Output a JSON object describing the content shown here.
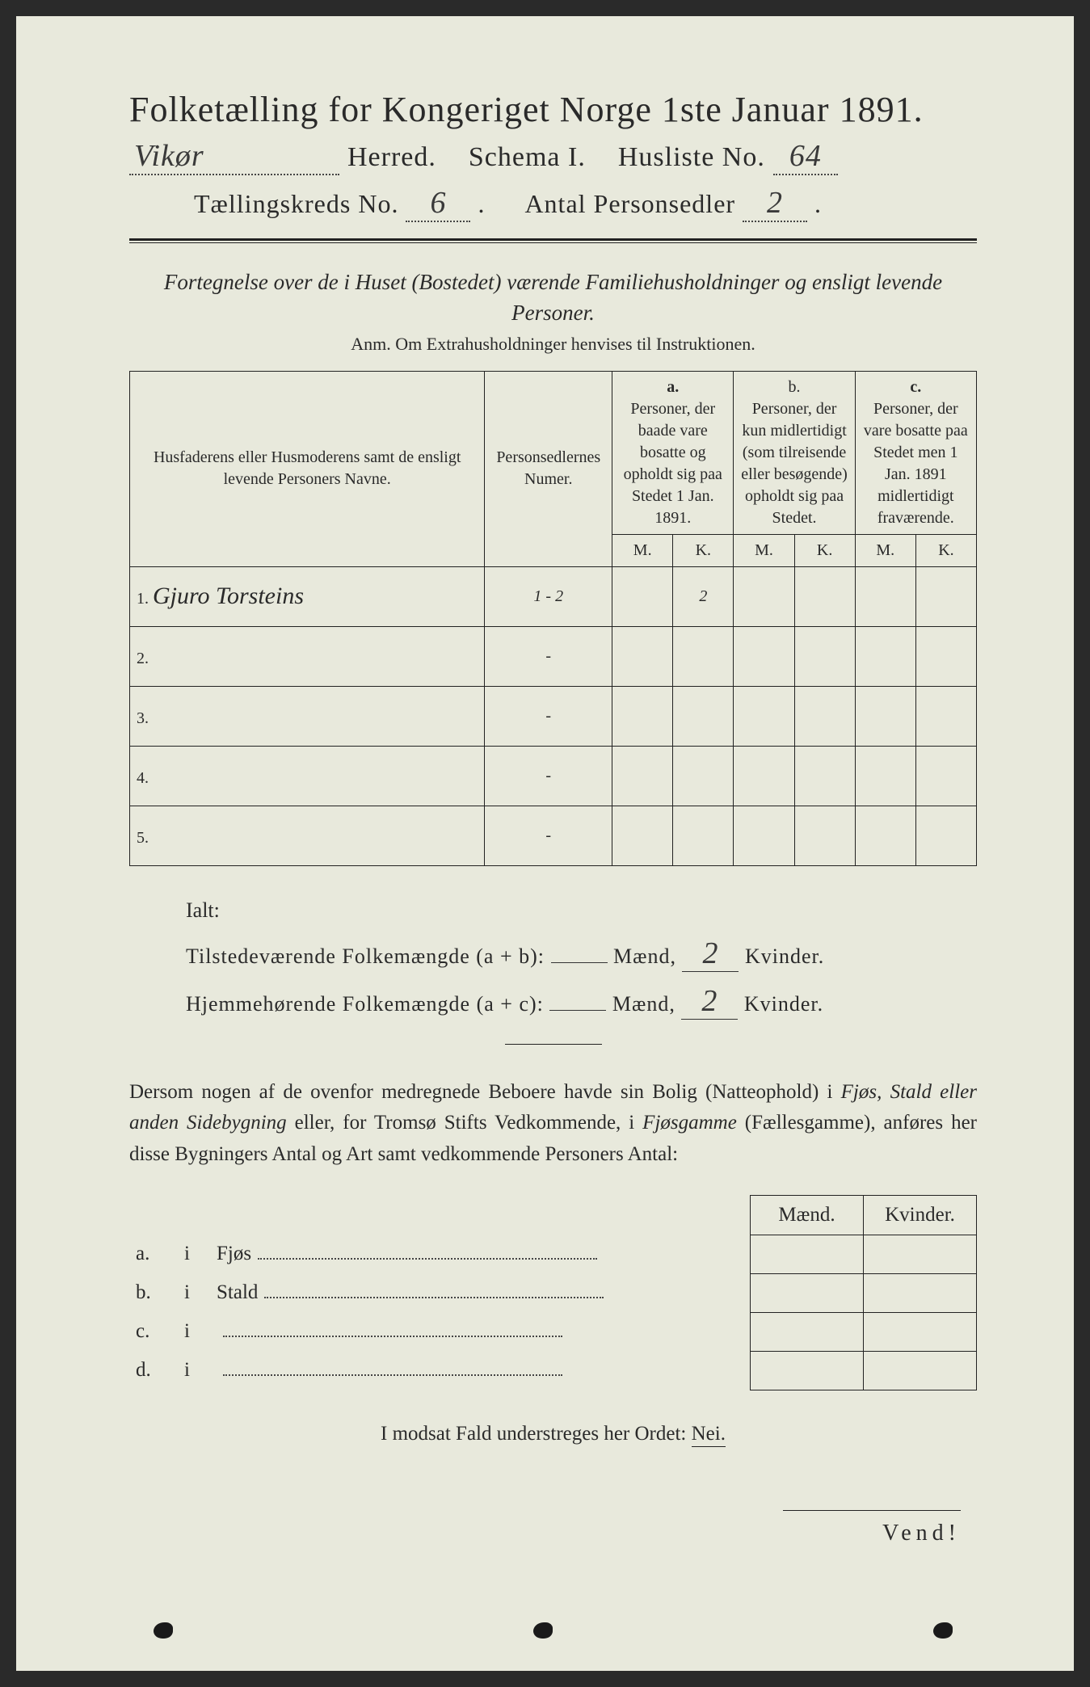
{
  "colors": {
    "paper": "#e8e9dc",
    "ink": "#2a2a2a",
    "border": "#222222",
    "background": "#2a2a2a"
  },
  "header": {
    "title": "Folketælling for Kongeriget Norge 1ste Januar 1891.",
    "herred_value": "Vikør",
    "herred_label": "Herred.",
    "schema_label": "Schema I.",
    "husliste_label": "Husliste No.",
    "husliste_value": "64",
    "kreds_label": "Tællingskreds No.",
    "kreds_value": "6",
    "antal_label": "Antal Personsedler",
    "antal_value": "2"
  },
  "subtitle": {
    "line": "Fortegnelse over de i Huset (Bostedet) værende Familiehusholdninger og ensligt levende Personer.",
    "anm": "Anm.  Om Extrahusholdninger henvises til Instruktionen."
  },
  "table": {
    "col_names": "Husfaderens eller Husmoderens samt de ensligt levende Personers Navne.",
    "col_num": "Personsedlernes Numer.",
    "col_a_head": "a.",
    "col_a": "Personer, der baade vare bosatte og opholdt sig paa Stedet 1 Jan. 1891.",
    "col_b_head": "b.",
    "col_b": "Personer, der kun midlertidigt (som tilreisende eller besøgende) opholdt sig paa Stedet.",
    "col_c_head": "c.",
    "col_c": "Personer, der vare bosatte paa Stedet men 1 Jan. 1891 midlertidigt fraværende.",
    "mk_m": "M.",
    "mk_k": "K.",
    "rows": [
      {
        "n": "1.",
        "name": "Gjuro Torsteins",
        "num": "1 - 2",
        "a_m": "",
        "a_k": "2",
        "b_m": "",
        "b_k": "",
        "c_m": "",
        "c_k": ""
      },
      {
        "n": "2.",
        "name": "",
        "num": "-",
        "a_m": "",
        "a_k": "",
        "b_m": "",
        "b_k": "",
        "c_m": "",
        "c_k": ""
      },
      {
        "n": "3.",
        "name": "",
        "num": "-",
        "a_m": "",
        "a_k": "",
        "b_m": "",
        "b_k": "",
        "c_m": "",
        "c_k": ""
      },
      {
        "n": "4.",
        "name": "",
        "num": "-",
        "a_m": "",
        "a_k": "",
        "b_m": "",
        "b_k": "",
        "c_m": "",
        "c_k": ""
      },
      {
        "n": "5.",
        "name": "",
        "num": "-",
        "a_m": "",
        "a_k": "",
        "b_m": "",
        "b_k": "",
        "c_m": "",
        "c_k": ""
      }
    ]
  },
  "totals": {
    "ialt": "Ialt:",
    "line1_pre": "Tilstedeværende Folkemængde (a + b):",
    "line2_pre": "Hjemmehørende Folkemængde (a + c):",
    "maend": "Mænd,",
    "kvinder": "Kvinder.",
    "m1": "",
    "k1": "2",
    "m2": "",
    "k2": "2"
  },
  "para": "Dersom nogen af de ovenfor medregnede Beboere havde sin Bolig (Natteophold) i Fjøs, Stald eller anden Sidebygning eller, for Tromsø Stifts Vedkommende, i Fjøsgamme (Fællesgamme), anføres her disse Bygningers Antal og Art samt vedkommende Personers Antal:",
  "bldg": {
    "hd_m": "Mænd.",
    "hd_k": "Kvinder.",
    "rows": [
      {
        "l": "a.",
        "i": "i",
        "name": "Fjøs"
      },
      {
        "l": "b.",
        "i": "i",
        "name": "Stald"
      },
      {
        "l": "c.",
        "i": "i",
        "name": ""
      },
      {
        "l": "d.",
        "i": "i",
        "name": ""
      }
    ]
  },
  "nei": {
    "pre": "I modsat Fald understreges her Ordet:",
    "word": "Nei."
  },
  "vend": "Vend!"
}
